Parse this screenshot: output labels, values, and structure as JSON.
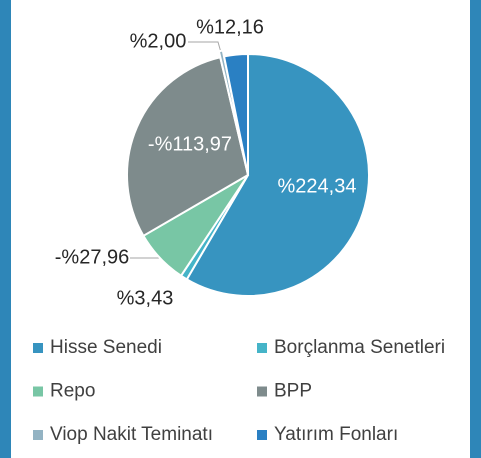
{
  "chart_data": {
    "type": "pie",
    "categories": [
      "Hisse Senedi",
      "Borçlanma Senetleri",
      "Repo",
      "BPP",
      "Viop Nakit Teminatı",
      "Yatırım Fonları"
    ],
    "values": [
      224.34,
      3.43,
      -27.96,
      -113.97,
      2.0,
      12.16
    ],
    "value_labels": [
      "%224,34",
      "%3,43",
      "-%27,96",
      "-%113,97",
      "%2,00",
      "%12,16"
    ],
    "colors": [
      "#3794c0",
      "#45b4c8",
      "#78c6a5",
      "#7e8b8c",
      "#93b3c3",
      "#2a80c3"
    ],
    "legend": "bottom"
  }
}
